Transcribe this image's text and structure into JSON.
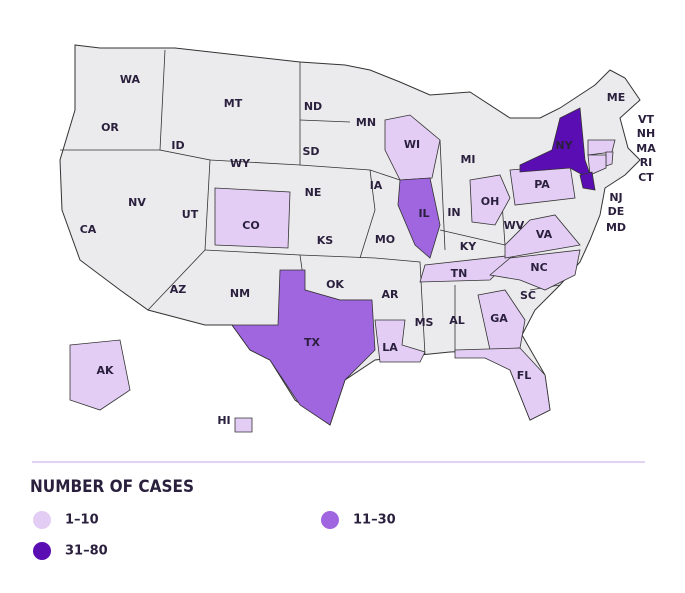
{
  "map": {
    "base_color": "#ebebed",
    "states": [
      {
        "label": "WA"
      },
      {
        "label": "OR"
      },
      {
        "label": "CA"
      },
      {
        "label": "NV"
      },
      {
        "label": "ID"
      },
      {
        "label": "MT"
      },
      {
        "label": "WY"
      },
      {
        "label": "UT"
      },
      {
        "label": "CO",
        "color": "#e3cdf4"
      },
      {
        "label": "AZ"
      },
      {
        "label": "NM"
      },
      {
        "label": "ND"
      },
      {
        "label": "SD"
      },
      {
        "label": "NE"
      },
      {
        "label": "KS"
      },
      {
        "label": "OK"
      },
      {
        "label": "TX",
        "color": "#a066e0"
      },
      {
        "label": "MN"
      },
      {
        "label": "IA"
      },
      {
        "label": "MO"
      },
      {
        "label": "AR"
      },
      {
        "label": "LA",
        "color": "#e3cdf4"
      },
      {
        "label": "WI",
        "color": "#e3cdf4"
      },
      {
        "label": "IL",
        "color": "#a066e0"
      },
      {
        "label": "MI"
      },
      {
        "label": "IN"
      },
      {
        "label": "OH",
        "color": "#e3cdf4"
      },
      {
        "label": "KY"
      },
      {
        "label": "TN",
        "color": "#e3cdf4"
      },
      {
        "label": "MS"
      },
      {
        "label": "AL"
      },
      {
        "label": "GA",
        "color": "#e3cdf4"
      },
      {
        "label": "FL",
        "color": "#e3cdf4"
      },
      {
        "label": "SC"
      },
      {
        "label": "NC",
        "color": "#e3cdf4"
      },
      {
        "label": "VA",
        "color": "#e3cdf4"
      },
      {
        "label": "WV"
      },
      {
        "label": "PA",
        "color": "#e3cdf4"
      },
      {
        "label": "NY",
        "color": "#5a0db3"
      },
      {
        "label": "ME"
      },
      {
        "label": "VT"
      },
      {
        "label": "NH"
      },
      {
        "label": "MA",
        "color": "#e3cdf4"
      },
      {
        "label": "RI",
        "color": "#e3cdf4"
      },
      {
        "label": "CT",
        "color": "#e3cdf4"
      },
      {
        "label": "NJ",
        "color": "#5a0db3"
      },
      {
        "label": "DE"
      },
      {
        "label": "MD"
      },
      {
        "label": "AK",
        "color": "#e3cdf4"
      },
      {
        "label": "HI",
        "color": "#e3cdf4"
      }
    ]
  },
  "legend": {
    "title": "NUMBER OF CASES",
    "items": [
      {
        "label": "1–10",
        "color": "#e3cdf4"
      },
      {
        "label": "11–30",
        "color": "#a066e0"
      },
      {
        "label": "31–80",
        "color": "#5a0db3"
      }
    ]
  }
}
